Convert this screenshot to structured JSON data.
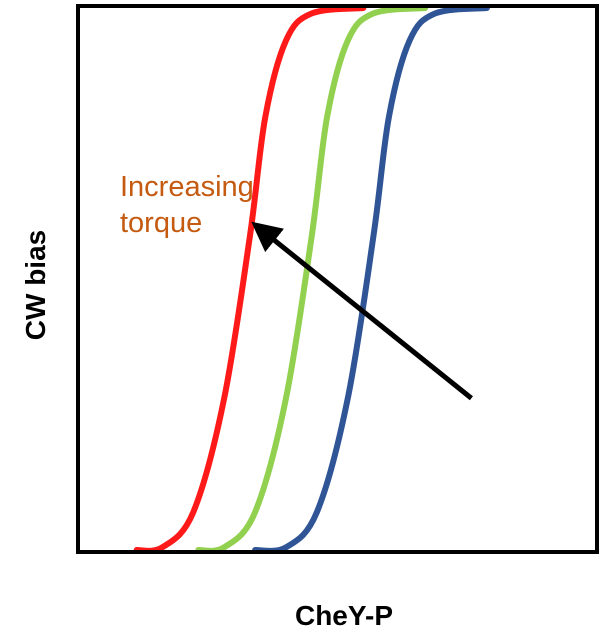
{
  "chart_data": {
    "type": "line",
    "title": "",
    "xlabel": "CheY-P",
    "ylabel": "CW bias",
    "xlim": [
      0,
      100
    ],
    "ylim": [
      0,
      100
    ],
    "grid": false,
    "axes_ticks": false,
    "series": [
      {
        "color": "#ff1a1a",
        "x": [
          11,
          16,
          22,
          28,
          33,
          36,
          40,
          45,
          55
        ],
        "y": [
          0,
          0.5,
          7,
          28,
          58,
          80,
          94,
          99,
          100
        ]
      },
      {
        "color": "#92d050",
        "x": [
          23,
          28,
          34,
          40,
          45,
          48,
          52,
          57,
          67
        ],
        "y": [
          0,
          0.5,
          7,
          28,
          58,
          80,
          94,
          99,
          100
        ]
      },
      {
        "color": "#2f5597",
        "x": [
          34,
          40,
          46,
          52,
          57,
          60,
          64,
          69,
          79
        ],
        "y": [
          0,
          0.5,
          7,
          28,
          58,
          80,
          94,
          99,
          100
        ]
      }
    ],
    "annotations": [
      {
        "text_lines": [
          "Increasing",
          "torque"
        ],
        "color": "#c55a11",
        "arrow": {
          "from": [
            76,
            28
          ],
          "to": [
            34,
            60
          ],
          "color": "#000000"
        }
      }
    ]
  }
}
